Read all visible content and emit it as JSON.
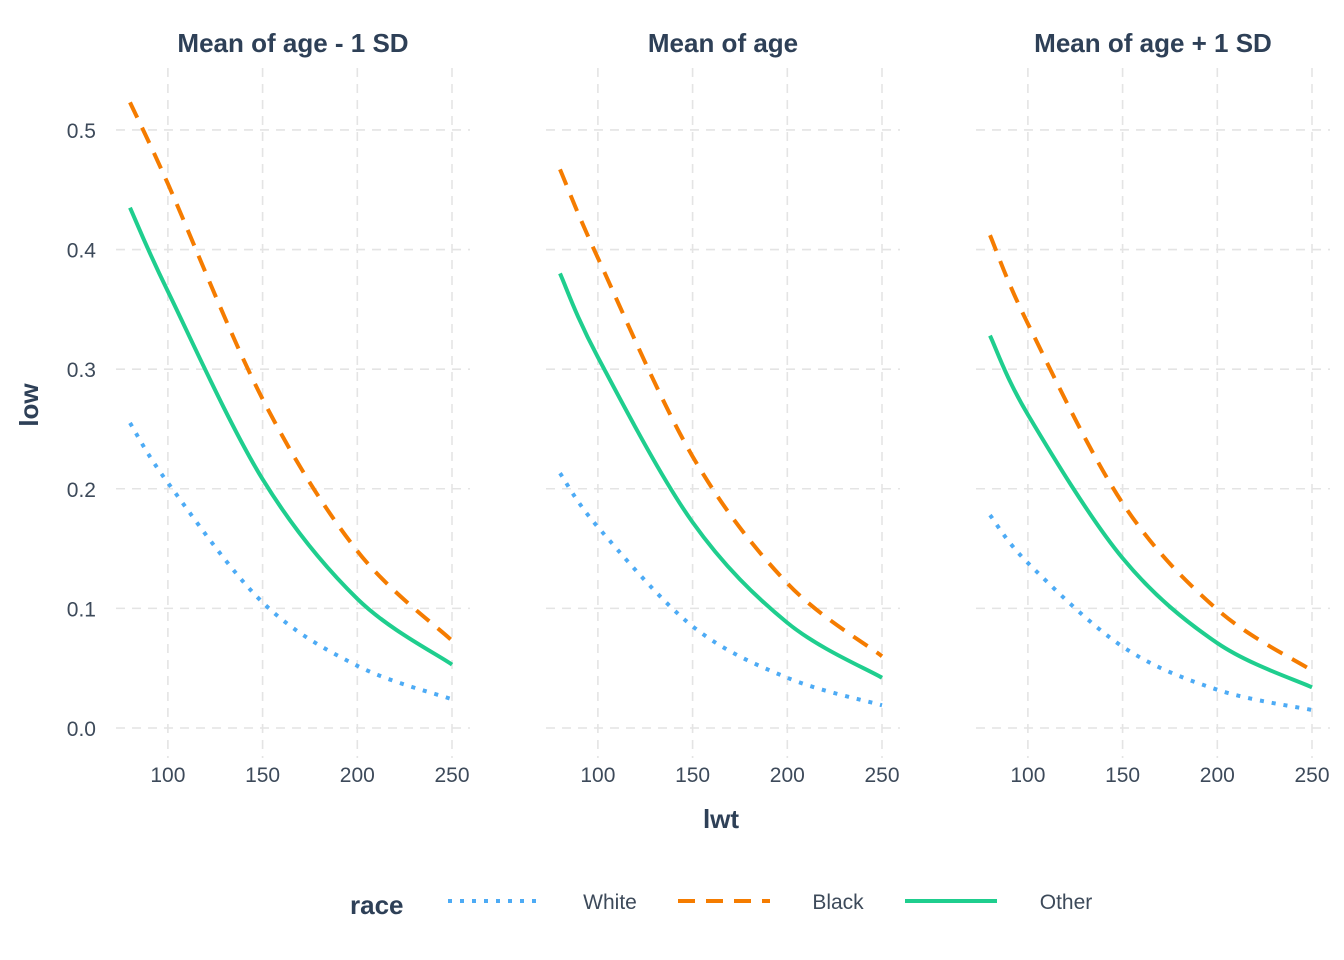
{
  "chart_data": {
    "type": "line",
    "xlabel": "lwt",
    "ylabel": "low",
    "xlim": [
      80,
      250
    ],
    "ylim": [
      0,
      0.525
    ],
    "x_ticks": [
      100,
      150,
      200,
      250
    ],
    "y_ticks": [
      0.0,
      0.1,
      0.2,
      0.3,
      0.4,
      0.5
    ],
    "y_tick_labels": [
      "0.0",
      "0.1",
      "0.2",
      "0.3",
      "0.4",
      "0.5"
    ],
    "grid": true,
    "legend": {
      "title": "race",
      "position": "bottom",
      "entries": [
        {
          "label": "White",
          "color": "#4dabf5",
          "dash": "dotted"
        },
        {
          "label": "Black",
          "color": "#f57c00",
          "dash": "dashed"
        },
        {
          "label": "Other",
          "color": "#1fce8e",
          "dash": "solid"
        }
      ]
    },
    "x": [
      80,
      100,
      150,
      200,
      250
    ],
    "facets": [
      {
        "title": "Mean of age - 1 SD",
        "series": [
          {
            "name": "White",
            "values": [
              0.255,
              0.205,
              0.105,
              0.052,
              0.024
            ]
          },
          {
            "name": "Black",
            "values": [
              0.523,
              0.455,
              0.275,
              0.148,
              0.073
            ]
          },
          {
            "name": "Other",
            "values": [
              0.435,
              0.365,
              0.208,
              0.108,
              0.053
            ]
          }
        ]
      },
      {
        "title": "Mean of age",
        "series": [
          {
            "name": "White",
            "values": [
              0.213,
              0.168,
              0.085,
              0.042,
              0.019
            ]
          },
          {
            "name": "Black",
            "values": [
              0.467,
              0.393,
              0.227,
              0.121,
              0.06
            ]
          },
          {
            "name": "Other",
            "values": [
              0.38,
              0.31,
              0.172,
              0.088,
              0.042
            ]
          }
        ]
      },
      {
        "title": "Mean of age + 1 SD",
        "series": [
          {
            "name": "White",
            "values": [
              0.178,
              0.138,
              0.068,
              0.032,
              0.015
            ]
          },
          {
            "name": "Black",
            "values": [
              0.412,
              0.338,
              0.188,
              0.099,
              0.048
            ]
          },
          {
            "name": "Other",
            "values": [
              0.328,
              0.262,
              0.142,
              0.071,
              0.034
            ]
          }
        ]
      }
    ]
  }
}
